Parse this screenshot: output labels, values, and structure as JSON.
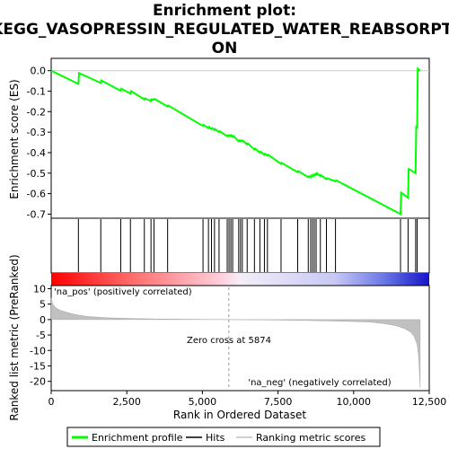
{
  "chart_data": {
    "type": "line",
    "title_lines": [
      "Enrichment plot:",
      "KEGG_VASOPRESSIN_REGULATED_WATER_REABSORPTI",
      "ON"
    ],
    "top_panel": {
      "ylabel": "Enrichment score (ES)",
      "ylim": [
        -0.72,
        0.06
      ],
      "yticks": [
        0.0,
        -0.1,
        -0.2,
        -0.3,
        -0.4,
        -0.5,
        -0.6,
        -0.7
      ],
      "ytick_labels": [
        "0.0",
        "-0.1",
        "-0.2",
        "-0.3",
        "-0.4",
        "-0.5",
        "-0.6",
        "-0.7"
      ],
      "series": [
        {
          "name": "Enrichment profile",
          "color": "#00ff00",
          "x": [
            0,
            900,
            920,
            1640,
            1660,
            2300,
            2320,
            2620,
            2640,
            3080,
            3100,
            3300,
            3320,
            3400,
            3420,
            3850,
            3870,
            5020,
            5040,
            5200,
            5220,
            5300,
            5320,
            5400,
            5420,
            5550,
            5570,
            5820,
            5840,
            5880,
            5900,
            5940,
            5960,
            6000,
            6020,
            6200,
            6220,
            6260,
            6280,
            6320,
            6340,
            6480,
            6500,
            6720,
            6740,
            6900,
            6920,
            7050,
            7070,
            7150,
            7170,
            7600,
            7620,
            8150,
            8170,
            8500,
            8520,
            8580,
            8600,
            8640,
            8660,
            8700,
            8720,
            8760,
            8780,
            8900,
            8920,
            9100,
            9120,
            9400,
            9420,
            11550,
            11570,
            11800,
            11820,
            12050,
            12070,
            12100,
            12120,
            12200
          ],
          "y": [
            0.0,
            -0.065,
            -0.012,
            -0.06,
            -0.048,
            -0.098,
            -0.088,
            -0.112,
            -0.1,
            -0.14,
            -0.135,
            -0.148,
            -0.14,
            -0.142,
            -0.138,
            -0.175,
            -0.17,
            -0.27,
            -0.265,
            -0.28,
            -0.275,
            -0.285,
            -0.28,
            -0.29,
            -0.285,
            -0.3,
            -0.295,
            -0.32,
            -0.315,
            -0.32,
            -0.315,
            -0.32,
            -0.315,
            -0.322,
            -0.318,
            -0.345,
            -0.34,
            -0.345,
            -0.34,
            -0.345,
            -0.342,
            -0.36,
            -0.355,
            -0.385,
            -0.38,
            -0.4,
            -0.395,
            -0.41,
            -0.405,
            -0.415,
            -0.41,
            -0.455,
            -0.45,
            -0.495,
            -0.49,
            -0.52,
            -0.515,
            -0.52,
            -0.512,
            -0.515,
            -0.508,
            -0.512,
            -0.505,
            -0.508,
            -0.5,
            -0.515,
            -0.51,
            -0.53,
            -0.525,
            -0.54,
            -0.535,
            -0.7,
            -0.595,
            -0.62,
            -0.48,
            -0.5,
            -0.27,
            -0.28,
            0.01,
            0.0
          ]
        }
      ]
    },
    "hits": [
      900,
      1640,
      2300,
      2620,
      3080,
      3300,
      3400,
      3850,
      5020,
      5200,
      5300,
      5400,
      5550,
      5820,
      5880,
      5940,
      6000,
      6200,
      6260,
      6320,
      6480,
      6720,
      6900,
      7050,
      7150,
      7600,
      8150,
      8500,
      8580,
      8640,
      8700,
      8760,
      8900,
      9100,
      9400,
      11550,
      11800,
      12050,
      12100
    ],
    "bottom_panel": {
      "ylabel": "Ranked list metric (PreRanked)",
      "ylim": [
        -23,
        11
      ],
      "yticks": [
        10,
        5,
        0,
        -5,
        -10,
        -15,
        -20
      ],
      "ytick_labels": [
        "10",
        "5",
        "0",
        "-5",
        "-10",
        "-15",
        "-20"
      ],
      "metric_curve": {
        "x": [
          0,
          50,
          150,
          300,
          500,
          800,
          1200,
          1800,
          2500,
          3500,
          4500,
          5874,
          7000,
          8500,
          9500,
          10500,
          11000,
          11400,
          11700,
          11900,
          12000,
          12100,
          12150,
          12180,
          12200
        ],
        "y": [
          7.0,
          5.0,
          3.8,
          3.0,
          2.4,
          1.6,
          1.0,
          0.6,
          0.4,
          0.2,
          0.1,
          0.0,
          -0.1,
          -0.3,
          -0.5,
          -0.8,
          -1.3,
          -2.0,
          -3.0,
          -4.2,
          -5.5,
          -8.0,
          -12.0,
          -18.0,
          -22.0
        ]
      },
      "pos_label": "'na_pos' (positively correlated)",
      "neg_label": "'na_neg' (negatively correlated)",
      "zero_cross_label": "Zero cross at 5874",
      "zero_cross": 5874
    },
    "xlabel": "Rank in Ordered Dataset",
    "xlim": [
      0,
      12500
    ],
    "xticks": [
      0,
      2500,
      5000,
      7500,
      10000,
      12500
    ],
    "xtick_labels": [
      "0",
      "2,500",
      "5,000",
      "7,500",
      "10,000",
      "12,500"
    ],
    "legend": {
      "placement": "bottom",
      "entries": [
        {
          "label": "Enrichment profile",
          "color": "#00ff00"
        },
        {
          "label": "Hits",
          "color": "#000000"
        },
        {
          "label": "Ranking metric scores",
          "color": "#c0c0c0"
        }
      ]
    },
    "colors": {
      "profile": "#00ff00",
      "pos_label": "#ff0000",
      "neg_label": "#0000ff",
      "metric_fill": "#c0c0c0"
    }
  }
}
